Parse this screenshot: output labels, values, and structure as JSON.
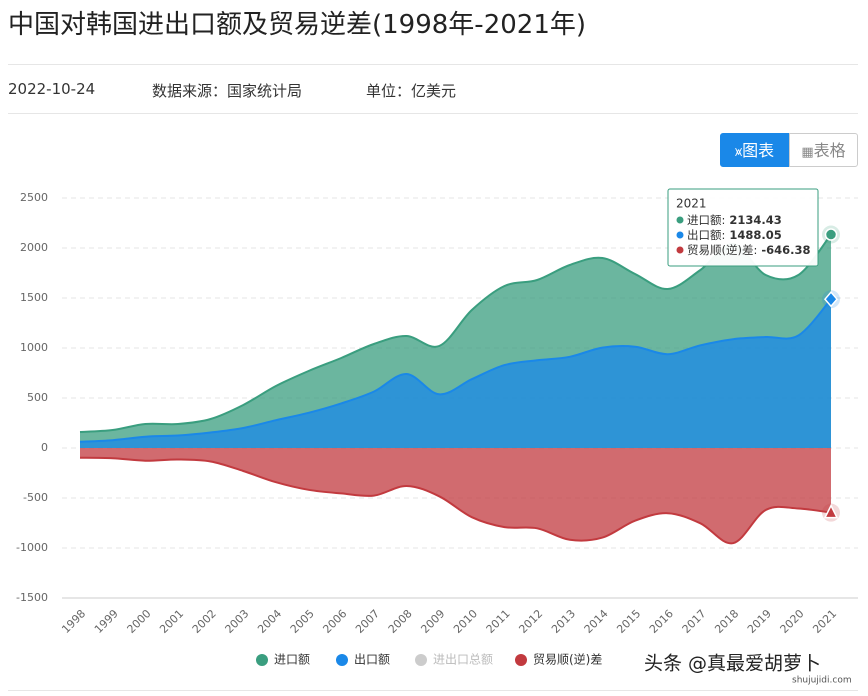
{
  "header": {
    "title": "中国对韩国进出口额及贸易逆差(1998年-2021年)",
    "date": "2022-10-24",
    "source": "数据来源：国家统计局",
    "unit": "单位：亿美元"
  },
  "buttons": {
    "chart": "图表",
    "table": "表格"
  },
  "watermark": {
    "main": "头条 @真最爱胡萝卜",
    "site": "shujujidi.com"
  },
  "chart_data": {
    "type": "area",
    "categories": [
      "1998",
      "1999",
      "2000",
      "2001",
      "2002",
      "2003",
      "2004",
      "2005",
      "2006",
      "2007",
      "2008",
      "2009",
      "2010",
      "2011",
      "2012",
      "2013",
      "2014",
      "2015",
      "2016",
      "2017",
      "2018",
      "2019",
      "2020",
      "2021"
    ],
    "series": [
      {
        "name": "进口额",
        "color": "#3a9e7f",
        "visible": true,
        "values": [
          160,
          180,
          240,
          240,
          290,
          430,
          620,
          770,
          900,
          1040,
          1120,
          1020,
          1380,
          1620,
          1680,
          1830,
          1900,
          1740,
          1590,
          1780,
          2040,
          1730,
          1730,
          2134.43
        ]
      },
      {
        "name": "出口额",
        "color": "#1a88e8",
        "visible": true,
        "values": [
          63,
          78,
          113,
          125,
          155,
          200,
          278,
          352,
          446,
          564,
          740,
          537,
          688,
          829,
          877,
          912,
          1004,
          1013,
          938,
          1027,
          1088,
          1110,
          1125,
          1488.05
        ]
      },
      {
        "name": "进出口总额",
        "color": "#cccccc",
        "visible": false,
        "values": [
          null,
          null,
          null,
          null,
          null,
          null,
          null,
          null,
          null,
          null,
          null,
          null,
          null,
          null,
          null,
          null,
          null,
          null,
          null,
          null,
          null,
          null,
          null,
          null
        ]
      },
      {
        "name": "贸易顺(逆)差",
        "color": "#c23a3f",
        "visible": true,
        "values": [
          -97,
          -102,
          -127,
          -115,
          -135,
          -230,
          -342,
          -418,
          -454,
          -476,
          -380,
          -483,
          -692,
          -791,
          -803,
          -918,
          -896,
          -727,
          -652,
          -753,
          -952,
          -620,
          -605,
          -646.38
        ]
      }
    ],
    "ylim": [
      -1500,
      2500
    ],
    "yticks": [
      -1500,
      -1000,
      -500,
      0,
      500,
      1000,
      1500,
      2000,
      2500
    ],
    "grid": true,
    "tooltip": {
      "labels": [
        "进口额:",
        "出口额:",
        "贸易顺(逆)差:"
      ]
    }
  }
}
